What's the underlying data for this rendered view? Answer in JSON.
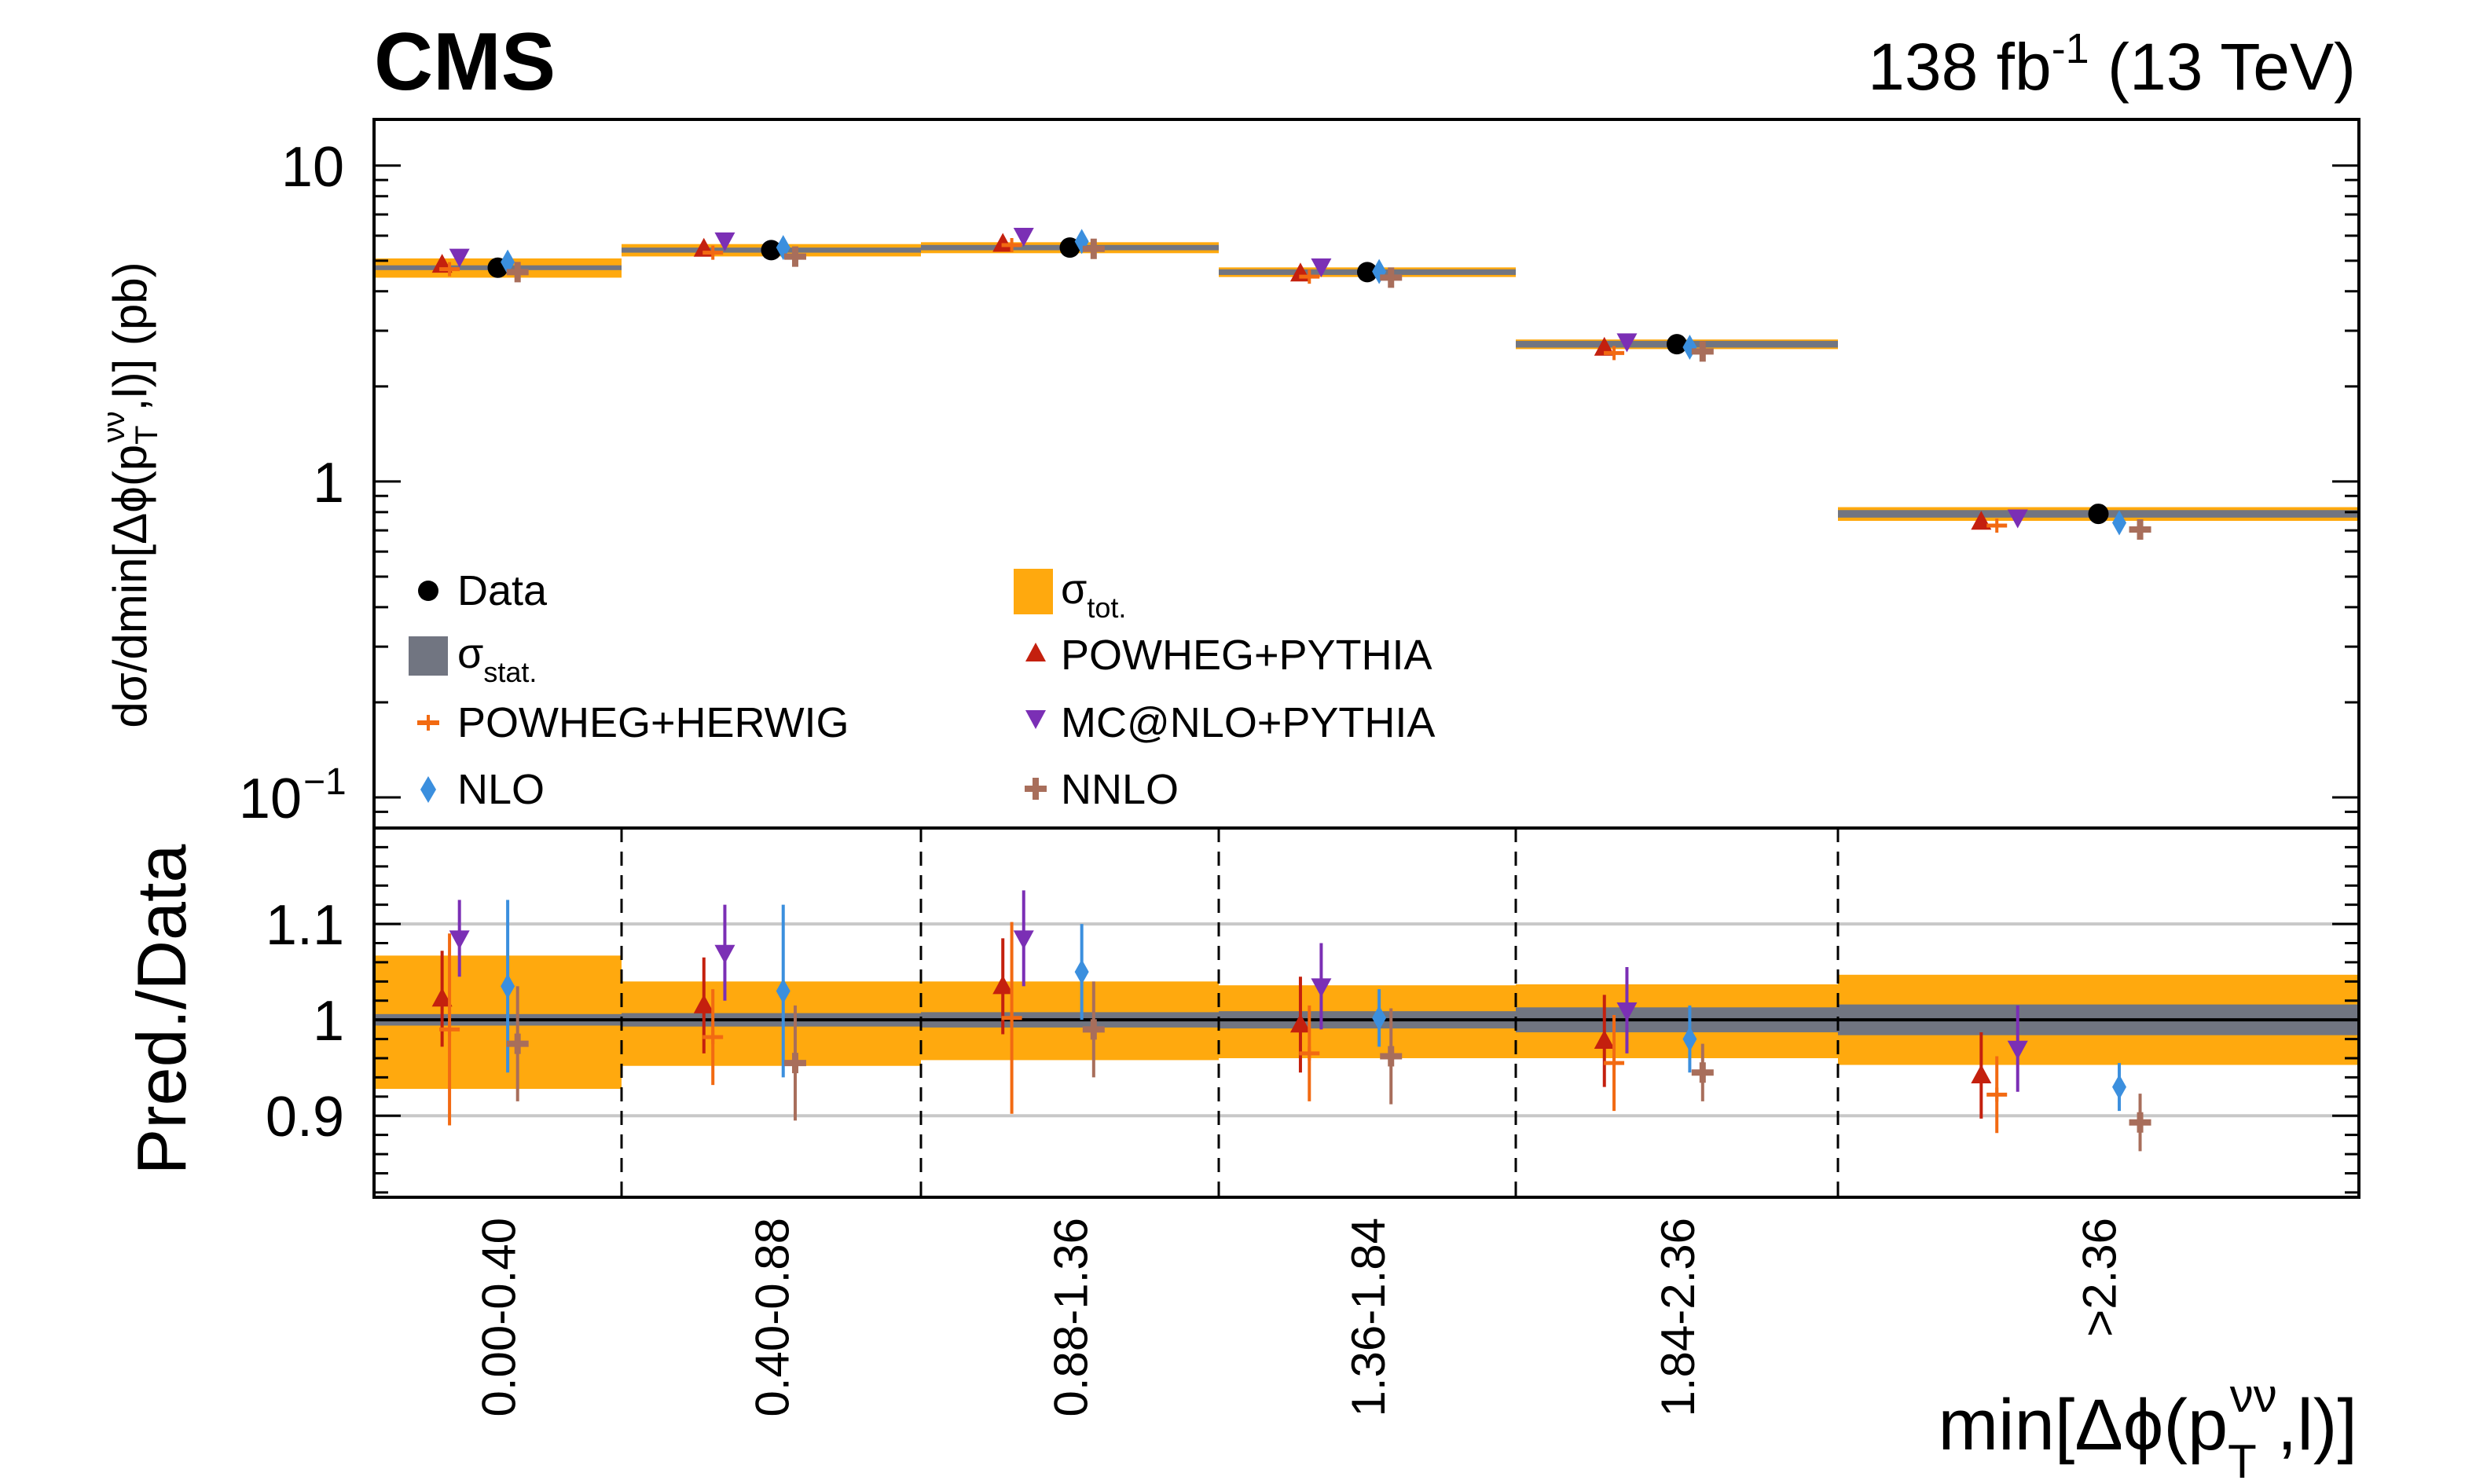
{
  "header": {
    "experiment": "CMS",
    "lumi_value": "138 fb",
    "lumi_exp": "-1",
    "lumi_energy": " (13 TeV)"
  },
  "chart_data": [
    {
      "type": "scatter",
      "panel": "top",
      "yscale": "log",
      "ylim": [
        0.08,
        14
      ],
      "ylabel": "dσ/dmin[Δϕ(p_T^νν,l)] (pb)",
      "ytick_labels": [
        "10",
        "1",
        "10"
      ],
      "ytick_exp": "−1",
      "categories": [
        "0.00-0.40",
        "0.40-0.88",
        "0.88-1.36",
        "1.36-1.84",
        "1.84-2.36",
        ">2.36"
      ],
      "band_tot_frac": [
        0.07,
        0.045,
        0.04,
        0.035,
        0.035,
        0.05
      ],
      "band_stat_frac": [
        0.006,
        0.007,
        0.008,
        0.009,
        0.013,
        0.016
      ],
      "series": [
        {
          "name": "POWHEG+PYTHIA",
          "values": [
            4.85,
            5.45,
            5.65,
            4.55,
            2.65,
            0.745
          ]
        },
        {
          "name": "POWHEG+HERWIG",
          "values": [
            4.7,
            5.3,
            5.6,
            4.45,
            2.55,
            0.725
          ]
        },
        {
          "name": "MC@NLO+PYTHIA",
          "values": [
            5.15,
            5.8,
            6.0,
            4.8,
            2.78,
            0.77
          ]
        },
        {
          "name": "Data",
          "values": [
            4.75,
            5.4,
            5.5,
            4.6,
            2.72,
            0.79
          ]
        },
        {
          "name": "NLO",
          "values": [
            4.95,
            5.5,
            5.75,
            4.62,
            2.66,
            0.74
          ]
        },
        {
          "name": "NNLO",
          "values": [
            4.6,
            5.15,
            5.45,
            4.42,
            2.58,
            0.705
          ]
        }
      ]
    },
    {
      "type": "scatter",
      "panel": "ratio",
      "ylim": [
        0.815,
        1.2
      ],
      "yticks": [
        0.9,
        1,
        1.1
      ],
      "ytick_labels": [
        "0.9",
        "1",
        "1.1"
      ],
      "ylabel": "Pred./Data",
      "xlabel_text": "min[Δϕ(p",
      "xlabel_sup": "νν",
      "xlabel_sub": "T",
      "xlabel_end": ",l)]",
      "categories": [
        "0.00-0.40",
        "0.40-0.88",
        "0.88-1.36",
        "1.36-1.84",
        "1.84-2.36",
        ">2.36"
      ],
      "band_tot": [
        [
          0.928,
          1.067
        ],
        [
          0.952,
          1.04
        ],
        [
          0.958,
          1.04
        ],
        [
          0.96,
          1.036
        ],
        [
          0.96,
          1.037
        ],
        [
          0.953,
          1.047
        ]
      ],
      "band_stat": [
        [
          0.994,
          1.006
        ],
        [
          0.993,
          1.007
        ],
        [
          0.992,
          1.008
        ],
        [
          0.991,
          1.009
        ],
        [
          0.987,
          1.013
        ],
        [
          0.984,
          1.016
        ]
      ],
      "series": [
        {
          "name": "POWHEG+PYTHIA",
          "values": [
            1.022,
            1.015,
            1.035,
            0.995,
            0.978,
            0.942
          ],
          "err": [
            0.05,
            0.05,
            0.05,
            0.05,
            0.048,
            0.045
          ]
        },
        {
          "name": "POWHEG+HERWIG",
          "values": [
            0.99,
            0.982,
            1.002,
            0.965,
            0.955,
            0.922
          ],
          "err": [
            0.1,
            0.05,
            0.1,
            0.05,
            0.05,
            0.04
          ]
        },
        {
          "name": "MC@NLO+PYTHIA",
          "values": [
            1.085,
            1.07,
            1.085,
            1.035,
            1.01,
            0.97
          ],
          "err": [
            0.04,
            0.05,
            0.05,
            0.045,
            0.045,
            0.045
          ]
        },
        {
          "name": "NLO",
          "values": [
            1.035,
            1.03,
            1.05,
            1.002,
            0.98,
            0.93
          ],
          "err": [
            0.09,
            0.09,
            0.05,
            0.03,
            0.035,
            0.025
          ]
        },
        {
          "name": "NNLO",
          "values": [
            0.975,
            0.955,
            0.99,
            0.962,
            0.945,
            0.893
          ],
          "err": [
            0.06,
            0.06,
            0.05,
            0.05,
            0.03,
            0.03
          ]
        }
      ]
    }
  ],
  "legend": {
    "data": "Data",
    "stat_main": "σ",
    "stat_sub": "stat.",
    "tot_main": "σ",
    "tot_sub": "tot.",
    "entries": [
      "POWHEG+PYTHIA",
      "POWHEG+HERWIG",
      "MC@NLO+PYTHIA",
      "NLO",
      "NNLO"
    ]
  },
  "colors": {
    "POWHEG+PYTHIA": "#c4200e",
    "POWHEG+HERWIG": "#f26a12",
    "MC@NLO+PYTHIA": "#7b2fb5",
    "Data": "#000000",
    "NLO": "#3b8fde",
    "NNLO": "#a86e5b",
    "band_tot": "#ffa90e",
    "band_stat": "#717581",
    "grid": "#c8c8c8"
  }
}
